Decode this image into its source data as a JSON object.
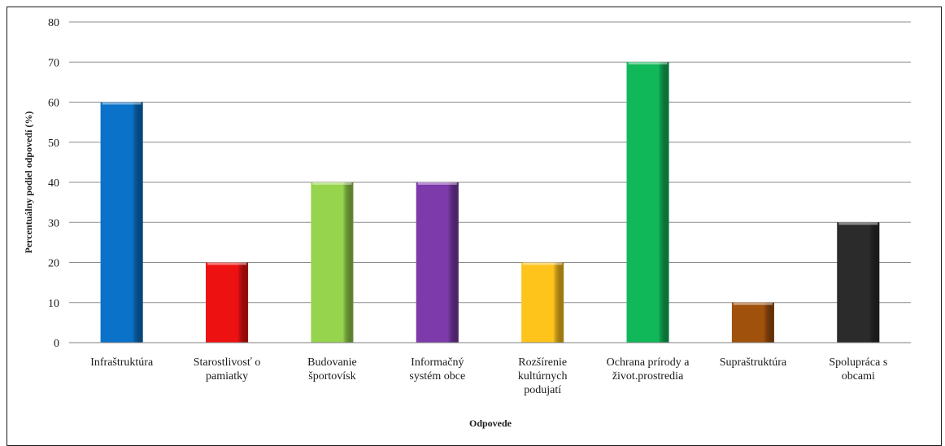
{
  "chart_data": {
    "type": "bar",
    "title": "",
    "xlabel": "Odpovede",
    "ylabel": "Percentuálny podiel odpovedí  (%)",
    "ylim": [
      0,
      80
    ],
    "yticks": [
      0,
      10,
      20,
      30,
      40,
      50,
      60,
      70,
      80
    ],
    "grid": true,
    "legend": "none",
    "categories": [
      [
        "Infraštruktúra"
      ],
      [
        "Starostlivosť o",
        "pamiatky"
      ],
      [
        "Budovanie",
        "športovísk"
      ],
      [
        "Informačný",
        "systém obce"
      ],
      [
        "Rozšírenie",
        "kultúrnych",
        "podujatí"
      ],
      [
        "Ochrana prírody a",
        "život.prostredia"
      ],
      [
        "Supraštruktúra"
      ],
      [
        "Spolupráca s",
        "obcami"
      ]
    ],
    "values": [
      60,
      20,
      40,
      40,
      20,
      70,
      10,
      30
    ],
    "colors": [
      "#0a72c8",
      "#ee1111",
      "#96d44e",
      "#7c3aaa",
      "#ffc41c",
      "#10b85a",
      "#a0510c",
      "#2b2b2b"
    ]
  }
}
